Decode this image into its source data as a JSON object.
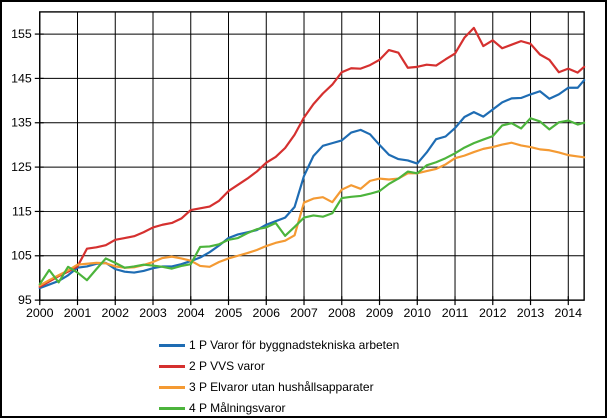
{
  "chart_data": {
    "type": "line",
    "title": "",
    "xlabel": "",
    "ylabel": "",
    "ylim": [
      95,
      160
    ],
    "xlim": [
      2000,
      2014.42
    ],
    "y_ticks": [
      95,
      105,
      115,
      125,
      135,
      145,
      155
    ],
    "x_ticks": [
      2000,
      2001,
      2002,
      2003,
      2004,
      2005,
      2006,
      2007,
      2008,
      2009,
      2010,
      2011,
      2012,
      2013,
      2014
    ],
    "x_tick_labels": [
      "2000",
      "2001",
      "2002",
      "2003",
      "2004",
      "2005",
      "2006",
      "2007",
      "2008",
      "2009",
      "2010",
      "2011",
      "2012",
      "2013",
      "2014"
    ],
    "grid": true,
    "legend_position": "bottom",
    "x": [
      2000,
      2000.25,
      2000.5,
      2000.75,
      2001,
      2001.25,
      2001.5,
      2001.75,
      2002,
      2002.25,
      2002.5,
      2002.75,
      2003,
      2003.25,
      2003.5,
      2003.75,
      2004,
      2004.25,
      2004.5,
      2004.75,
      2005,
      2005.25,
      2005.5,
      2005.75,
      2006,
      2006.25,
      2006.5,
      2006.75,
      2007,
      2007.25,
      2007.5,
      2007.75,
      2008,
      2008.25,
      2008.5,
      2008.75,
      2009,
      2009.25,
      2009.5,
      2009.75,
      2010,
      2010.25,
      2010.5,
      2010.75,
      2011,
      2011.25,
      2011.5,
      2011.75,
      2012,
      2012.25,
      2012.5,
      2012.75,
      2013,
      2013.25,
      2013.5,
      2013.75,
      2014,
      2014.25,
      2014.42
    ],
    "series": [
      {
        "name": "1 P Varor för byggnadstekniska arbeten",
        "color": "#1e6cb3",
        "values": [
          97.7,
          98.5,
          99.3,
          100.6,
          102.3,
          102.6,
          103.2,
          103.4,
          102,
          101.4,
          101.2,
          101.6,
          102.2,
          102.6,
          102.6,
          103.1,
          103.8,
          104.6,
          105.8,
          107.3,
          109,
          109.8,
          110.3,
          110.8,
          112,
          112.8,
          113.6,
          116,
          123,
          127.5,
          129.8,
          130.4,
          131,
          132.8,
          133.4,
          132.4,
          130,
          127.8,
          126.8,
          126.5,
          125.8,
          128.3,
          131.3,
          131.9,
          133.8,
          136.3,
          137.4,
          136.4,
          138,
          139.6,
          140.5,
          140.6,
          141.4,
          142.1,
          140.4,
          141.4,
          142.9,
          142.9,
          144.6
        ]
      },
      {
        "name": "2 P VVS varor",
        "color": "#d5302f",
        "values": [
          98,
          99.2,
          100.4,
          101.4,
          102.6,
          106.6,
          106.9,
          107.4,
          108.6,
          109,
          109.4,
          110.3,
          111.4,
          112,
          112.4,
          113.4,
          115.3,
          115.7,
          116.1,
          117.4,
          119.6,
          121,
          122.4,
          124,
          126,
          127.3,
          129.3,
          132.3,
          136.2,
          139.2,
          141.6,
          143.6,
          146.4,
          147.3,
          147.2,
          148,
          149.2,
          151.4,
          150.8,
          147.4,
          147.6,
          148.1,
          147.9,
          149.3,
          150.6,
          154.2,
          156.4,
          152.3,
          153.6,
          151.8,
          152.6,
          153.4,
          152.8,
          150.4,
          149.2,
          146.4,
          147.2,
          146.3,
          147.6
        ]
      },
      {
        "name": "3 P Elvaror utan hushållsapparater",
        "color": "#f49a33",
        "values": [
          98.3,
          99.5,
          100.6,
          101.7,
          103,
          103.2,
          103.4,
          103.3,
          102.6,
          102.3,
          102.4,
          102.9,
          103.6,
          104.5,
          104.8,
          104.4,
          103.9,
          102.7,
          102.5,
          103.6,
          104.4,
          105,
          105.6,
          106.3,
          107.2,
          107.9,
          108.4,
          109.6,
          117,
          117.9,
          118.2,
          117.1,
          119.9,
          120.9,
          120.1,
          121.9,
          122.4,
          122.2,
          122.4,
          123.6,
          123.6,
          124.1,
          124.6,
          125.6,
          127,
          127.6,
          128.4,
          129.1,
          129.5,
          130.1,
          130.5,
          129.9,
          129.5,
          129,
          128.8,
          128.3,
          127.7,
          127.4,
          127.2
        ]
      },
      {
        "name": "4 P Målningsvaror",
        "color": "#4cb43c",
        "values": [
          98.6,
          101.8,
          99,
          102.5,
          101.2,
          99.5,
          102,
          104.4,
          103.4,
          102.3,
          102.6,
          103,
          102.8,
          102.5,
          102.1,
          102.7,
          103.1,
          107,
          107.1,
          107.6,
          108.6,
          109,
          110.1,
          111,
          111.4,
          112.4,
          109.5,
          111.5,
          113.6,
          114.1,
          113.8,
          114.6,
          118,
          118.3,
          118.5,
          119,
          119.6,
          121.2,
          122.4,
          124,
          123.6,
          125.4,
          126.1,
          127,
          128.1,
          129.4,
          130.4,
          131.2,
          132,
          134.4,
          134.9,
          133.7,
          136,
          135.3,
          133.5,
          135.1,
          135.5,
          134.6,
          135
        ]
      }
    ]
  }
}
